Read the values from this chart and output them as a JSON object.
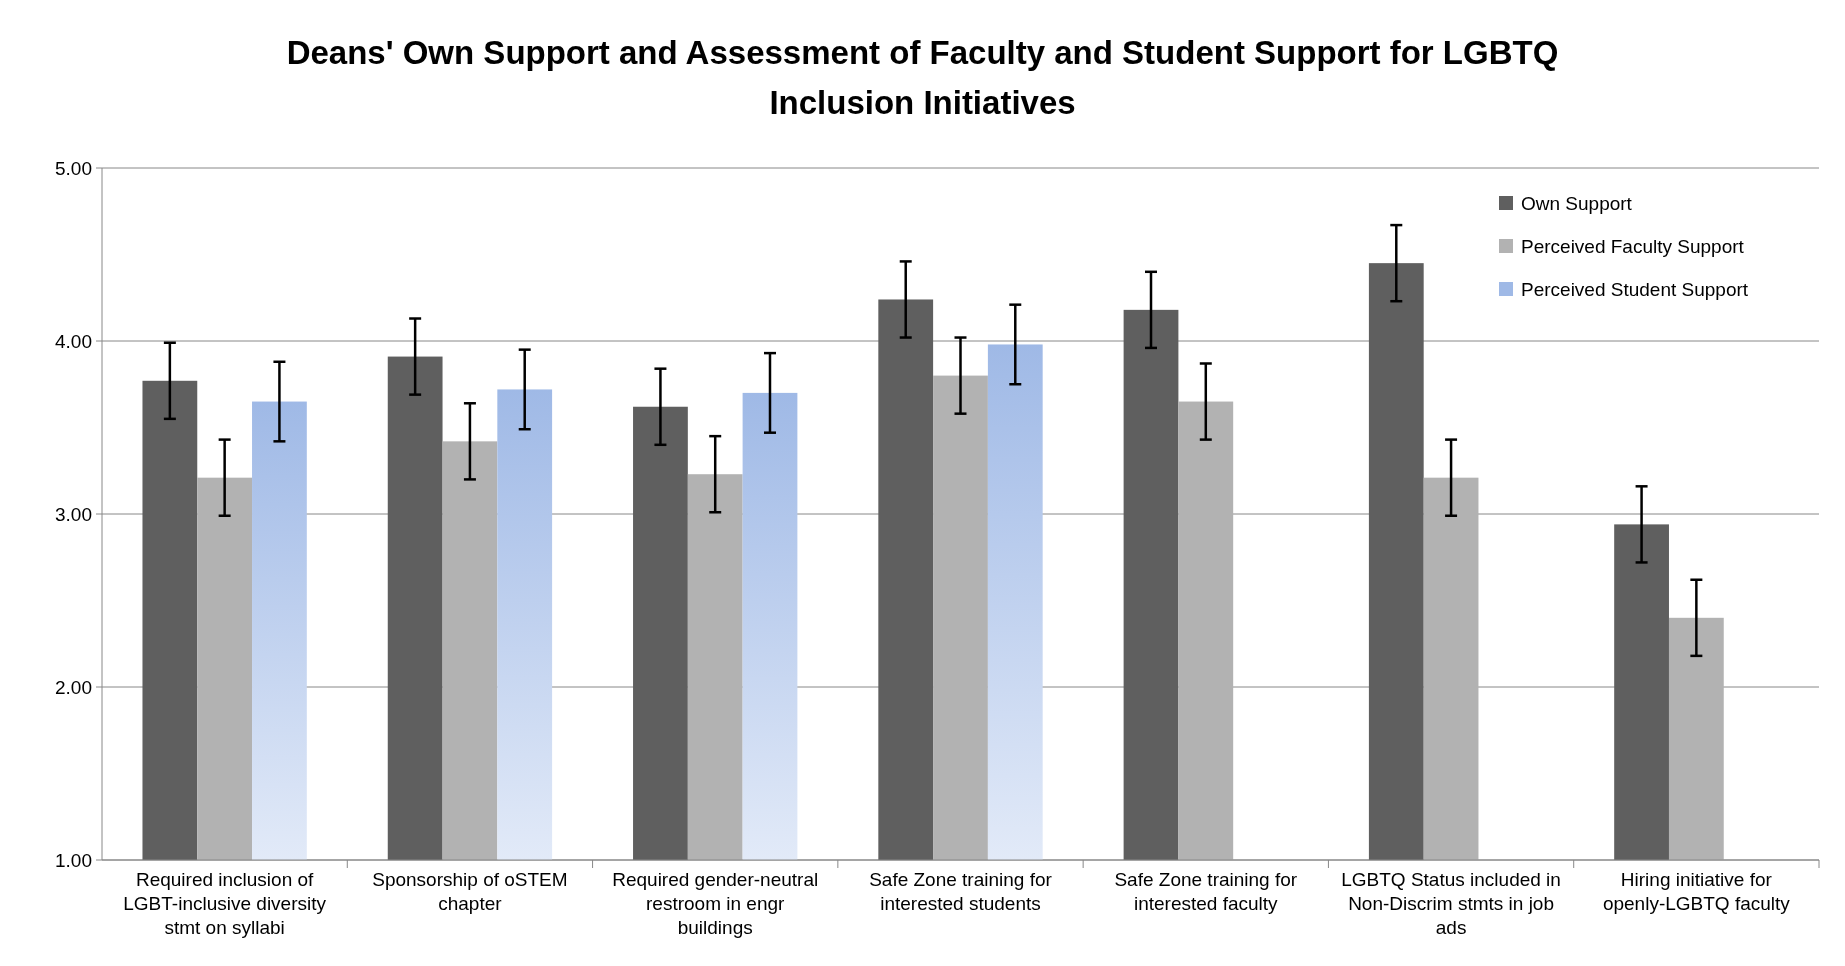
{
  "chart_data": {
    "type": "bar",
    "title": "Deans' Own Support and Assessment of Faculty and Student Support for LGBTQ Inclusion Initiatives",
    "categories": [
      "Required inclusion of LGBT-inclusive diversity stmt on syllabi",
      "Sponsorship of oSTEM chapter",
      "Required gender-neutral restroom in engr buildings",
      "Safe Zone training for interested students",
      "Safe Zone training for interested faculty",
      "LGBTQ Status included in Non-Discrim stmts in job ads",
      "Hiring initiative for openly-LGBTQ faculty"
    ],
    "series": [
      {
        "name": "Own Support",
        "color": "#5f5f5f",
        "values": [
          3.77,
          3.91,
          3.62,
          4.24,
          4.18,
          4.45,
          2.94
        ],
        "errors": [
          0.22,
          0.22,
          0.22,
          0.22,
          0.22,
          0.22,
          0.22
        ]
      },
      {
        "name": "Perceived Faculty Support",
        "color": "#b2b2b2",
        "values": [
          3.21,
          3.42,
          3.23,
          3.8,
          3.65,
          3.21,
          2.4
        ],
        "errors": [
          0.22,
          0.22,
          0.22,
          0.22,
          0.22,
          0.22,
          0.22
        ]
      },
      {
        "name": "Perceived Student Support",
        "color": "#9fb9e6",
        "values": [
          3.65,
          3.72,
          3.7,
          3.98,
          null,
          null,
          null
        ],
        "errors": [
          0.23,
          0.23,
          0.23,
          0.23,
          null,
          null,
          null
        ]
      }
    ],
    "ylim": [
      1,
      5
    ],
    "yticks": [
      {
        "value": 1,
        "label": "1.00"
      },
      {
        "value": 2,
        "label": "2.00"
      },
      {
        "value": 3,
        "label": "3.00"
      },
      {
        "value": 4,
        "label": "4.00"
      },
      {
        "value": 5,
        "label": "5.00"
      }
    ],
    "grid": "y",
    "legend": "top right"
  }
}
